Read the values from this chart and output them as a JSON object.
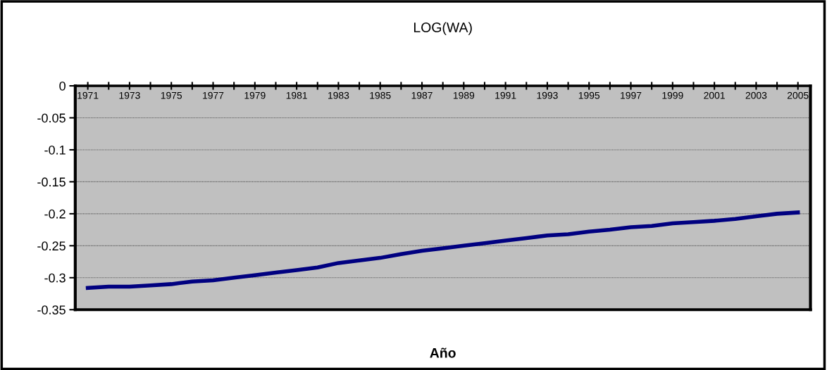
{
  "chart_data": {
    "type": "line",
    "title": "LOG(WA)",
    "xlabel": "Año",
    "categories": [
      "1971",
      null,
      "1973",
      null,
      "1975",
      null,
      "1977",
      null,
      "1979",
      null,
      "1981",
      null,
      "1983",
      null,
      "1985",
      null,
      "1987",
      null,
      "1989",
      null,
      "1991",
      null,
      "1993",
      null,
      "1995",
      null,
      "1997",
      null,
      "1999",
      null,
      "2001",
      null,
      "2003",
      null,
      "2005"
    ],
    "series": [
      {
        "color": "#000080",
        "values": [
          -0.316,
          -0.314,
          -0.314,
          -0.312,
          -0.31,
          -0.306,
          -0.304,
          -0.3,
          -0.296,
          -0.292,
          -0.288,
          -0.284,
          -0.277,
          -0.273,
          -0.269,
          -0.263,
          -0.258,
          -0.254,
          -0.25,
          -0.246,
          -0.242,
          -0.238,
          -0.234,
          -0.232,
          -0.228,
          -0.225,
          -0.221,
          -0.219,
          -0.215,
          -0.213,
          -0.211,
          -0.208,
          -0.204,
          -0.2,
          -0.198
        ]
      }
    ],
    "ylim": [
      -0.35,
      0
    ],
    "yticks": [
      0,
      -0.05,
      -0.1,
      -0.15,
      -0.2,
      -0.25,
      -0.3,
      -0.35
    ],
    "grid": "y",
    "legend": false,
    "marker": "none",
    "line_style": "solid"
  }
}
